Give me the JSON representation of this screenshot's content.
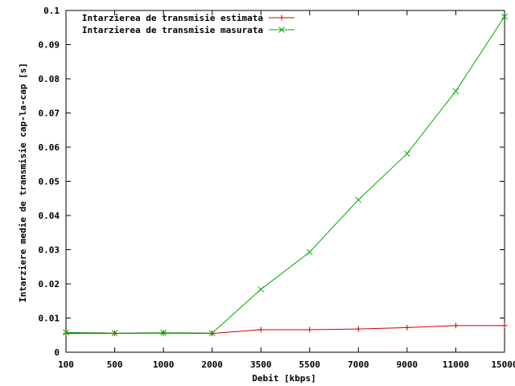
{
  "chart_data": {
    "type": "line",
    "title": "",
    "xlabel": "Debit [kbps]",
    "ylabel": "Intarziere medie de transmisie cap-la-cap [s]",
    "categories": [
      "100",
      "500",
      "1000",
      "2000",
      "3500",
      "5500",
      "7000",
      "9000",
      "11000",
      "15000"
    ],
    "yticks": [
      "0",
      "0.01",
      "0.02",
      "0.03",
      "0.04",
      "0.05",
      "0.06",
      "0.07",
      "0.08",
      "0.09",
      "0.1"
    ],
    "ylim": [
      0,
      0.1
    ],
    "grid": false,
    "legend_position": "top-left",
    "series": [
      {
        "name": "Intarzierea de transmisie estimata",
        "color": "#cc0000",
        "marker": "plus",
        "values": [
          0.0055,
          0.0055,
          0.0056,
          0.0055,
          0.0066,
          0.0066,
          0.0068,
          0.0072,
          0.0078,
          0.0078
        ]
      },
      {
        "name": "Intarzierea de transmisie masurata",
        "color": "#00aa00",
        "marker": "cross",
        "values": [
          0.0058,
          0.0056,
          0.0057,
          0.0056,
          0.0184,
          0.0293,
          0.0446,
          0.0581,
          0.0764,
          0.0982
        ]
      }
    ]
  }
}
